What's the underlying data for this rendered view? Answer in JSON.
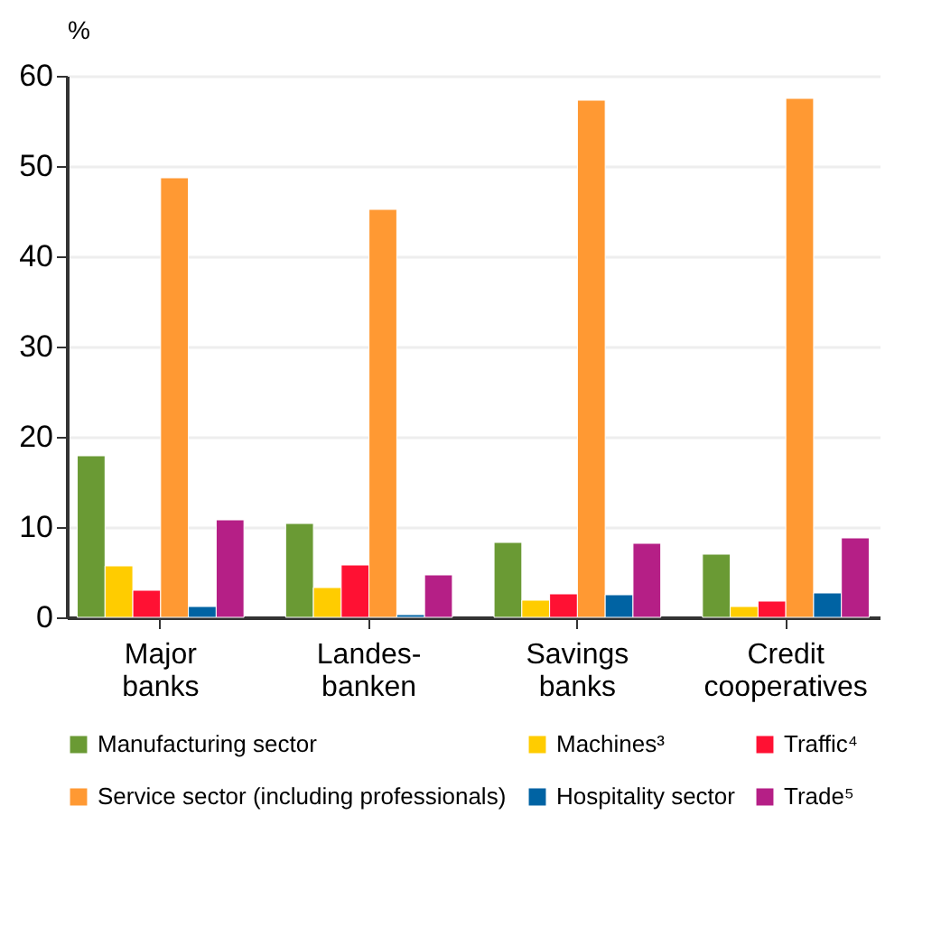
{
  "chart_data": {
    "type": "bar",
    "ylabel": "%",
    "categories": [
      "Major banks",
      "Landes-banken",
      "Savings banks",
      "Credit cooperatives"
    ],
    "series": [
      {
        "name": "Manufacturing sector",
        "color": "#6a9a34",
        "values": [
          17.9,
          10.4,
          8.3,
          7.0
        ]
      },
      {
        "name": "Machines³",
        "color": "#ffcc00",
        "values": [
          5.7,
          3.3,
          1.9,
          1.2
        ]
      },
      {
        "name": "Traffic⁴",
        "color": "#ff1133",
        "values": [
          3.0,
          5.8,
          2.6,
          1.8
        ]
      },
      {
        "name": "Service sector (including professionals)",
        "color": "#ff9933",
        "values": [
          48.7,
          45.2,
          57.3,
          57.5
        ]
      },
      {
        "name": "Hospitality sector",
        "color": "#0063a3",
        "values": [
          1.2,
          0.3,
          2.5,
          2.7
        ]
      },
      {
        "name": "Trade⁵",
        "color": "#b51f86",
        "values": [
          10.8,
          4.7,
          8.2,
          8.8
        ]
      }
    ],
    "ylim": [
      0,
      60
    ],
    "yticks": [
      0,
      10,
      20,
      30,
      40,
      50,
      60
    ],
    "grid": "y",
    "legend": "bottom"
  }
}
